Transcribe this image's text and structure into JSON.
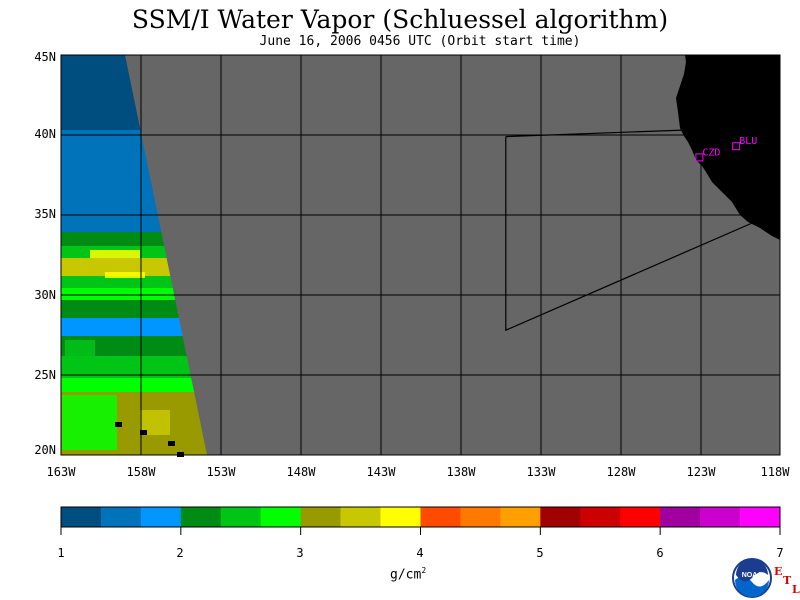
{
  "title": "SSM/I Water Vapor (Schluessel algorithm)",
  "subtitle": "June 16, 2006  0456 UTC  (Orbit start time)",
  "lat_labels": [
    "45N",
    "40N",
    "35N",
    "30N",
    "25N",
    "20N"
  ],
  "lon_labels": [
    "163W",
    "158W",
    "153W",
    "148W",
    "143W",
    "138W",
    "133W",
    "128W",
    "123W",
    "118W"
  ],
  "stations": [
    {
      "label": "CZD",
      "lon": -123.1,
      "lat": 38.6
    },
    {
      "label": "BLU",
      "lon": -120.8,
      "lat": 39.3
    }
  ],
  "colorbar": {
    "ticks": [
      "1",
      "2",
      "3",
      "4",
      "5",
      "6",
      "7"
    ],
    "units": "g/cm",
    "units_exp": "2",
    "colors": [
      "#004d80",
      "#0073bb",
      "#0096ff",
      "#008c14",
      "#00c416",
      "#00ff00",
      "#999900",
      "#c8c800",
      "#ffff00",
      "#ff4b00",
      "#ff7800",
      "#ffa000",
      "#a00000",
      "#cc0000",
      "#ff0000",
      "#a000a0",
      "#cc00cc",
      "#ff00ff"
    ]
  },
  "map_colors": {
    "no_data": "#666666",
    "land": "#000000",
    "station": "#ff00ff"
  },
  "logo": {
    "noaa": "NOAA",
    "etl": [
      "E",
      "T",
      "L"
    ]
  }
}
